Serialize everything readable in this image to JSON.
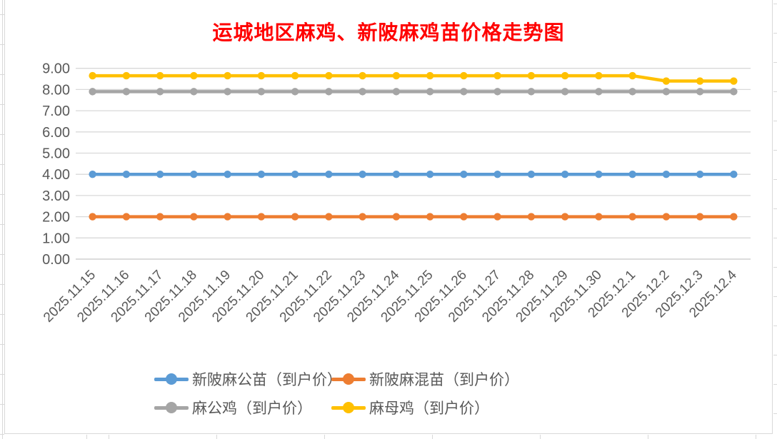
{
  "chart_data": {
    "type": "line",
    "title": "运城地区麻鸡、新陂麻鸡苗价格走势图",
    "title_color": "#FF0000",
    "categories": [
      "2025.11.15",
      "2025.11.16",
      "2025.11.17",
      "2025.11.18",
      "2025.11.19",
      "2025.11.20",
      "2025.11.21",
      "2025.11.22",
      "2025.11.23",
      "2025.11.24",
      "2025.11.25",
      "2025.11.26",
      "2025.11.27",
      "2025.11.28",
      "2025.11.29",
      "2025.11.30",
      "2025.12.1",
      "2025.12.2",
      "2025.12.3",
      "2025.12.4"
    ],
    "series": [
      {
        "name": "新陂麻公苗（到户价）",
        "color": "#5B9BD5",
        "values": [
          4.0,
          4.0,
          4.0,
          4.0,
          4.0,
          4.0,
          4.0,
          4.0,
          4.0,
          4.0,
          4.0,
          4.0,
          4.0,
          4.0,
          4.0,
          4.0,
          4.0,
          4.0,
          4.0,
          4.0
        ]
      },
      {
        "name": "新陂麻混苗（到户价）",
        "color": "#ED7D31",
        "values": [
          2.0,
          2.0,
          2.0,
          2.0,
          2.0,
          2.0,
          2.0,
          2.0,
          2.0,
          2.0,
          2.0,
          2.0,
          2.0,
          2.0,
          2.0,
          2.0,
          2.0,
          2.0,
          2.0,
          2.0
        ]
      },
      {
        "name": "麻公鸡（到户价）",
        "color": "#A5A5A5",
        "values": [
          7.9,
          7.9,
          7.9,
          7.9,
          7.9,
          7.9,
          7.9,
          7.9,
          7.9,
          7.9,
          7.9,
          7.9,
          7.9,
          7.9,
          7.9,
          7.9,
          7.9,
          7.9,
          7.9,
          7.9
        ]
      },
      {
        "name": "麻母鸡（到户价）",
        "color": "#FFC000",
        "values": [
          8.65,
          8.65,
          8.65,
          8.65,
          8.65,
          8.65,
          8.65,
          8.65,
          8.65,
          8.65,
          8.65,
          8.65,
          8.65,
          8.65,
          8.65,
          8.65,
          8.65,
          8.4,
          8.4,
          8.4
        ]
      }
    ],
    "ylim": [
      0,
      9
    ],
    "y_tick_step": 1,
    "y_tick_labels": [
      "0.00",
      "1.00",
      "2.00",
      "3.00",
      "4.00",
      "5.00",
      "6.00",
      "7.00",
      "8.00",
      "9.00"
    ],
    "grid": "horizontal",
    "gridline_color": "#D9D9D9",
    "axis_line_color": "#C6C6C6",
    "axis_text_color": "#595959",
    "x_label_rotation": 45,
    "legend_position": "bottom"
  }
}
